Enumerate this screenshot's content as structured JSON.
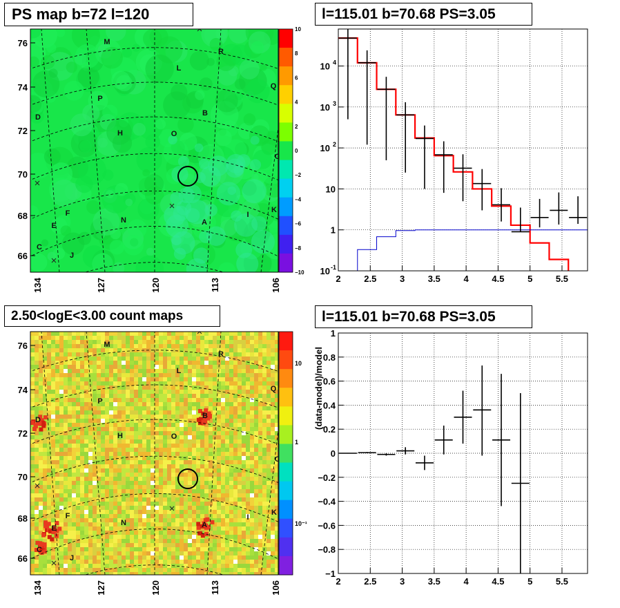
{
  "colors": {
    "map_green": "#16e64a",
    "hist_red": "#ff0000",
    "model_blue": "#0000cc",
    "data_black": "#000000"
  },
  "panels": {
    "ps_map": {
      "title": "PS map b=72 l=120",
      "y_ticks": [
        "76",
        "74",
        "72",
        "70",
        "68",
        "66"
      ],
      "x_ticks": [
        "134",
        "127",
        "120",
        "113",
        "106"
      ],
      "colorbar_ticks": [
        "10",
        "8",
        "6",
        "4",
        "2",
        "0",
        "−2",
        "−4",
        "−6",
        "−8",
        "−10"
      ],
      "sources": [
        "M",
        "R",
        "L",
        "Q",
        "P",
        "D",
        "B",
        "H",
        "O",
        "G",
        "F",
        "E",
        "N",
        "A",
        "I",
        "K",
        "C",
        "J"
      ]
    },
    "count_map": {
      "title": "2.50<logE<3.00 count maps",
      "y_ticks": [
        "76",
        "74",
        "72",
        "70",
        "68",
        "66"
      ],
      "x_ticks": [
        "134",
        "127",
        "120",
        "113",
        "106"
      ],
      "colorbar_ticks": [
        "10",
        "1",
        "10⁻¹"
      ],
      "sources": [
        "M",
        "R",
        "L",
        "Q",
        "P",
        "D",
        "B",
        "H",
        "O",
        "G",
        "F",
        "E",
        "N",
        "A",
        "I",
        "K",
        "C",
        "J"
      ]
    },
    "spectrum": {
      "title": "l=115.01 b=70.68 PS=3.05"
    },
    "residual": {
      "title": "l=115.01 b=70.68 PS=3.05"
    }
  },
  "chart_data": [
    {
      "type": "heatmap",
      "title": "PS map b=72 l=120",
      "xlabel": "",
      "ylabel": "",
      "x_ticks": [
        134,
        127,
        120,
        113,
        106
      ],
      "y_ticks": [
        76,
        74,
        72,
        70,
        68,
        66
      ],
      "color_range": [
        -10,
        10
      ],
      "colorbar_ticks": [
        10,
        8,
        6,
        4,
        2,
        0,
        -2,
        -4,
        -6,
        -8,
        -10
      ],
      "marked_position": {
        "l": 115.01,
        "b": 70.68
      }
    },
    {
      "type": "heatmap",
      "title": "2.50<logE<3.00 count maps",
      "xlabel": "",
      "ylabel": "",
      "x_ticks": [
        134,
        127,
        120,
        113,
        106
      ],
      "y_ticks": [
        76,
        74,
        72,
        70,
        68,
        66
      ],
      "colorbar_scale": "log",
      "colorbar_ticks": [
        "10",
        "1",
        "10^-1"
      ]
    },
    {
      "type": "line",
      "title": "l=115.01 b=70.68 PS=3.05",
      "xlabel": "",
      "ylabel": "",
      "xlim": [
        2,
        5.9
      ],
      "ylim": [
        0.1,
        80000
      ],
      "yscale": "log",
      "x_ticks": [
        2,
        2.5,
        3,
        3.5,
        4,
        4.5,
        5,
        5.5
      ],
      "y_tick_labels": [
        "10^-1",
        "1",
        "10",
        "10^2",
        "10^3",
        "10^4"
      ],
      "grid": true,
      "series": [
        {
          "style": "step-red-thick",
          "edges": [
            2,
            2.3,
            2.6,
            2.9,
            3.2,
            3.5,
            3.8,
            4.1,
            4.4,
            4.7,
            5.0,
            5.3,
            5.6,
            5.9
          ],
          "values": [
            48000,
            12000,
            2700,
            640,
            175,
            65,
            26,
            10,
            3.8,
            1.3,
            0.48,
            0.19,
            0.075
          ]
        },
        {
          "style": "step-blue-thin",
          "edges": [
            2,
            2.3,
            2.6,
            2.9,
            3.2,
            3.5,
            3.8,
            4.1,
            4.4,
            4.7,
            5.0,
            5.3,
            5.6,
            5.9
          ],
          "values": [
            0.02,
            0.33,
            0.68,
            0.96,
            1.0,
            1.0,
            1.0,
            1.0,
            1.0,
            1.0,
            1.0,
            1.0,
            1.0
          ]
        },
        {
          "style": "points-black",
          "x": [
            2.15,
            2.45,
            2.75,
            3.05,
            3.35,
            3.65,
            3.95,
            4.25,
            4.55,
            4.85,
            5.15,
            5.45,
            5.75
          ],
          "y": [
            48000,
            12000,
            2700,
            640,
            170,
            68,
            32,
            13.5,
            4.1,
            0.9,
            2.0,
            3.0,
            2.0
          ],
          "yerr_low": [
            47500,
            11880,
            2650,
            615,
            160,
            60,
            27,
            10.5,
            2.5,
            0.02,
            0.85,
            1.65,
            0.6
          ],
          "yerr_high": [
            48500,
            12120,
            2750,
            665,
            183,
            77,
            38,
            17,
            6.3,
            2.6,
            3.7,
            5.2,
            4.6
          ]
        }
      ]
    },
    {
      "type": "scatter",
      "title": "l=115.01 b=70.68 PS=3.05",
      "xlabel": "",
      "ylabel": "(data-model)/model",
      "xlim": [
        2,
        5.9
      ],
      "ylim": [
        -1,
        1
      ],
      "x_ticks": [
        2,
        2.5,
        3,
        3.5,
        4,
        4.5,
        5,
        5.5
      ],
      "y_ticks": [
        -1,
        -0.8,
        -0.6,
        -0.4,
        -0.2,
        0,
        0.2,
        0.4,
        0.6,
        0.8,
        1
      ],
      "grid": true,
      "series": [
        {
          "x": [
            2.15,
            2.45,
            2.75,
            3.05,
            3.35,
            3.65,
            3.95,
            4.25,
            4.55,
            4.85
          ],
          "y": [
            0.0,
            0.005,
            -0.01,
            0.02,
            -0.08,
            0.11,
            0.3,
            0.36,
            0.11,
            -0.25
          ],
          "yerr_low": [
            0.003,
            0.005,
            0.01,
            0.03,
            0.06,
            0.12,
            0.22,
            0.38,
            0.55,
            0.75
          ],
          "yerr_high": [
            0.003,
            0.005,
            0.01,
            0.03,
            0.06,
            0.12,
            0.22,
            0.37,
            0.55,
            0.75
          ]
        }
      ]
    }
  ]
}
